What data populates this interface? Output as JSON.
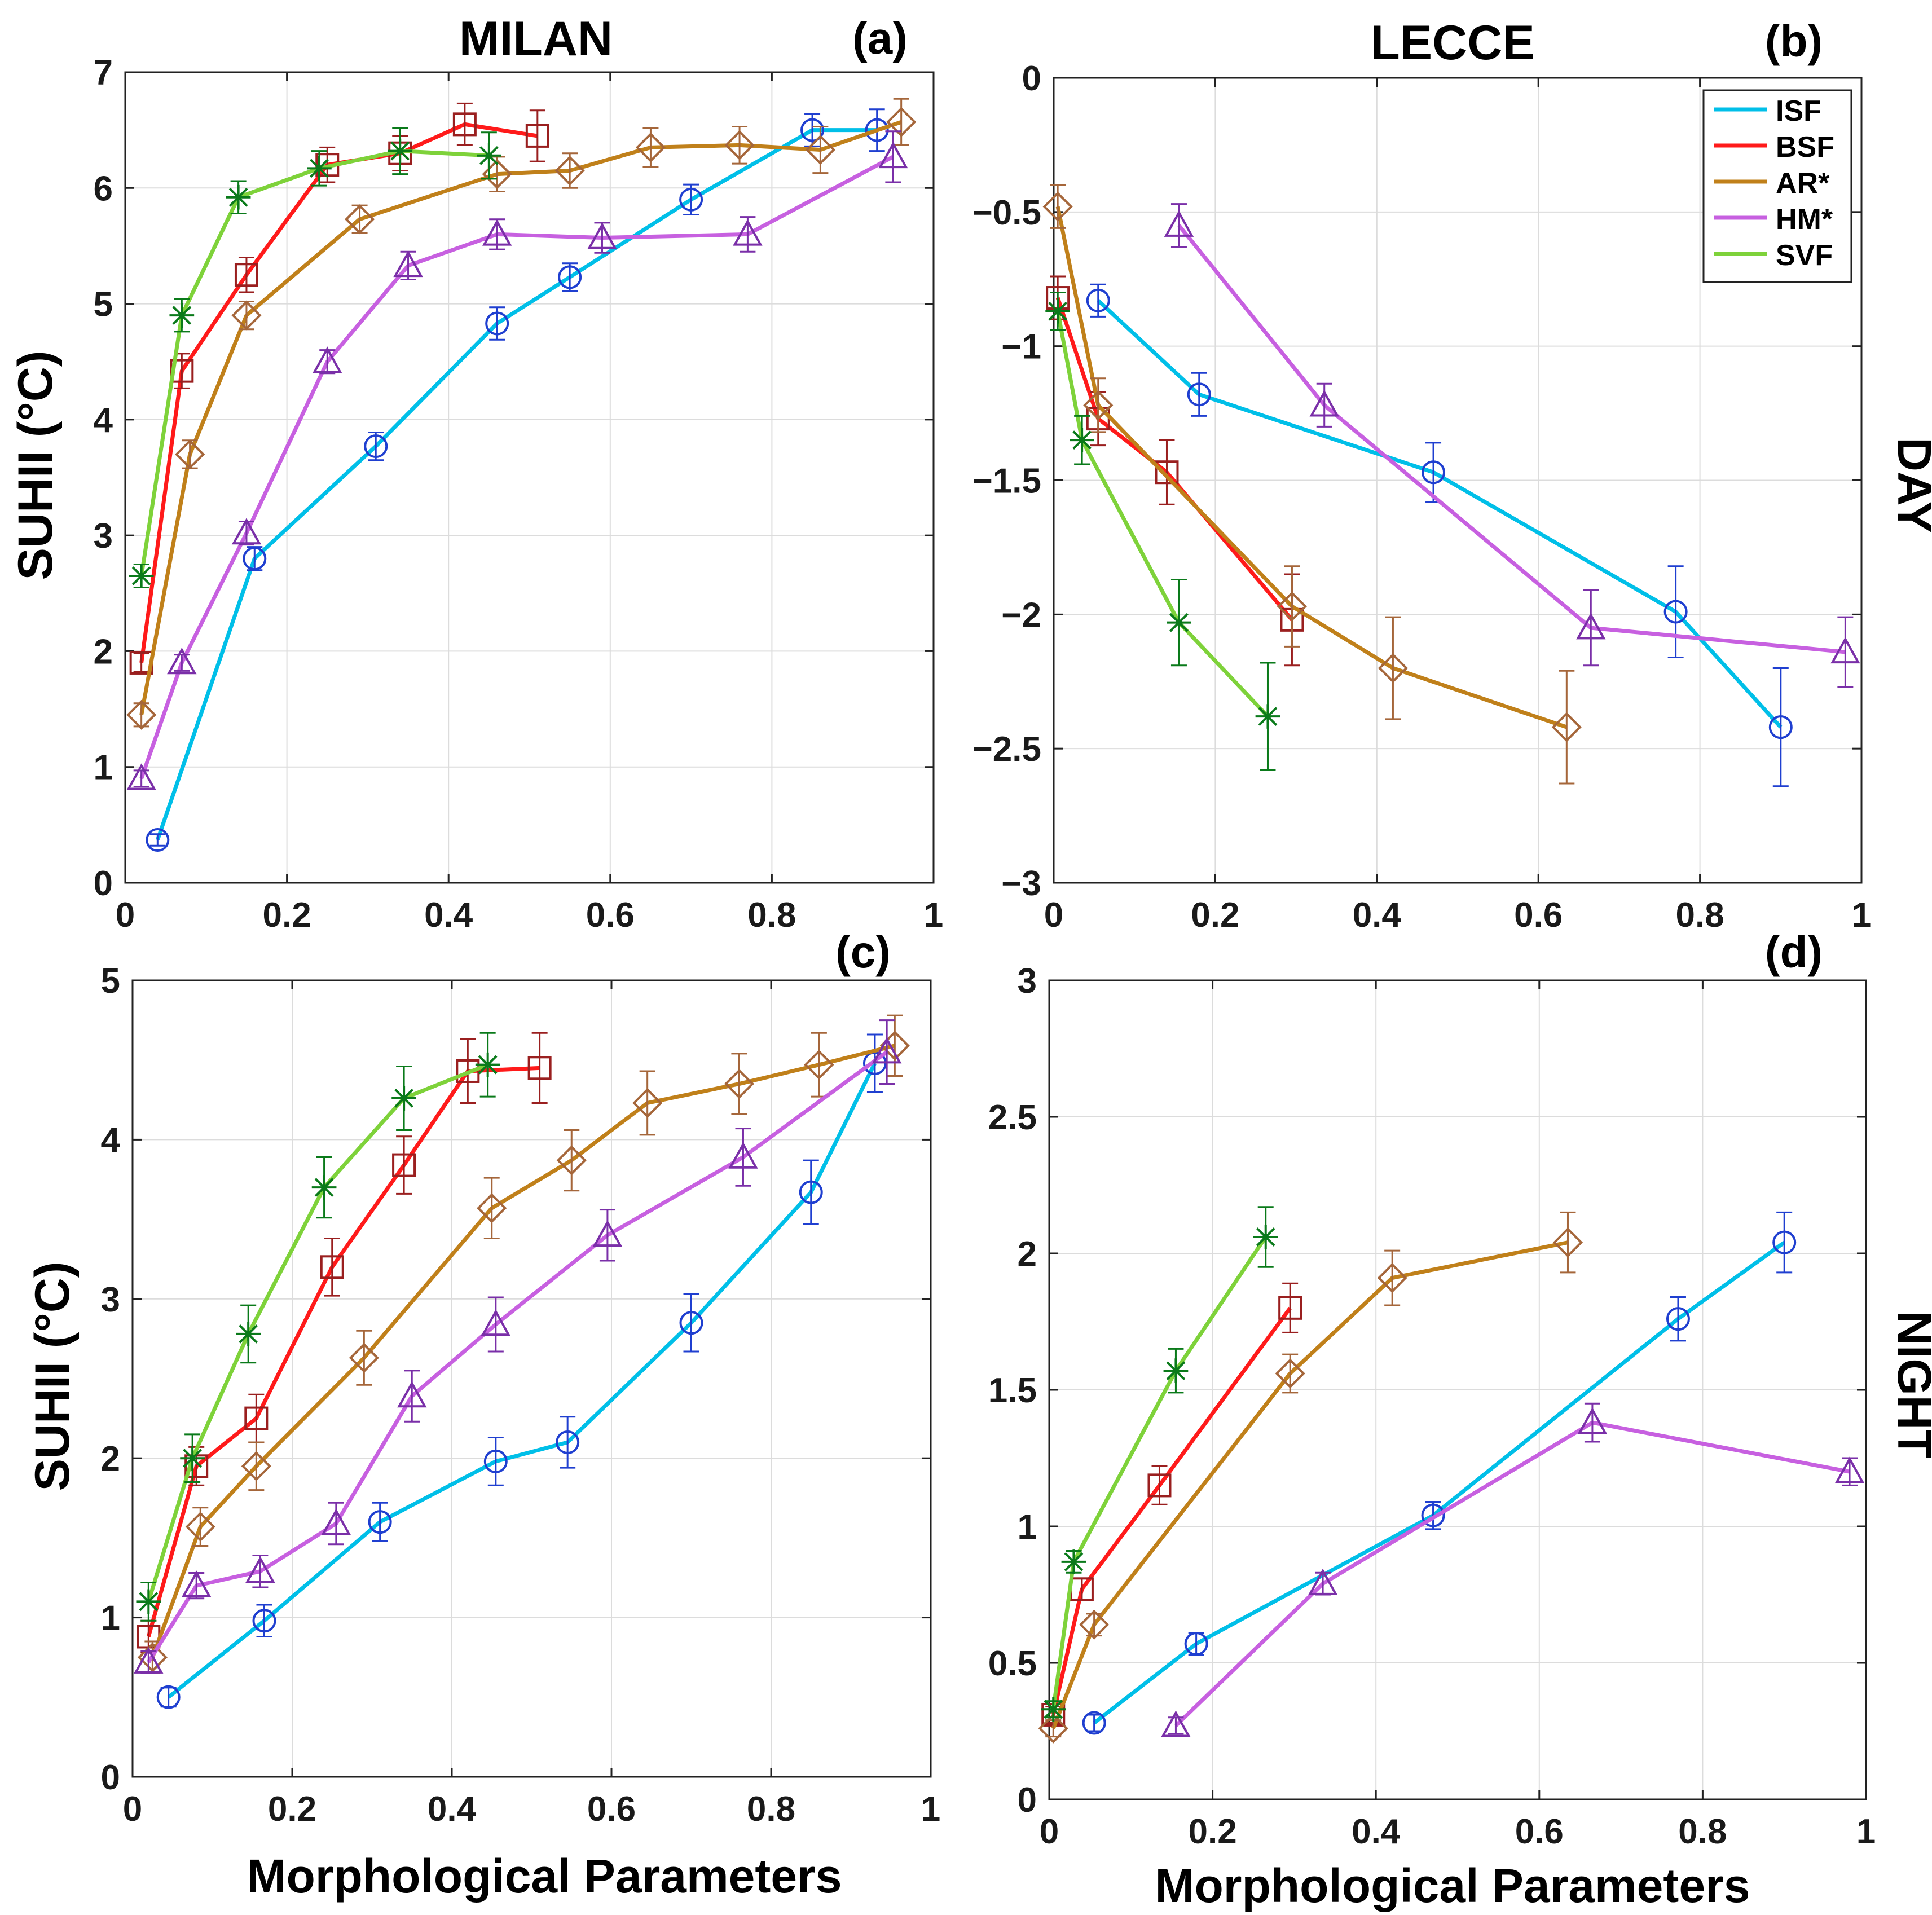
{
  "colors": {
    "ISF": "#00bfe8",
    "BSF": "#ff1a1a",
    "AR*": "#c0801a",
    "HM*": "#c760e0",
    "SVF": "#7ed23a",
    "ISF_marker": "#1f3fd0",
    "BSF_marker": "#9a1f1f",
    "AR*_marker": "#a5663a",
    "HM*_marker": "#7a2fa8",
    "SVF_marker": "#0a7a1a"
  },
  "labels": {
    "city_left": "MILAN",
    "city_right": "LECCE",
    "side_top": "DAY",
    "side_bottom": "NIGHT",
    "ylabel": "SUHII (°C)",
    "xlabel": "Morphological Parameters"
  },
  "chart_data": [
    {
      "id": "a",
      "panel_label": "(a)",
      "type": "line",
      "city": "MILAN",
      "time": "DAY",
      "xlim": [
        0,
        1
      ],
      "ylim": [
        0,
        7
      ],
      "xticks": [
        0,
        0.2,
        0.4,
        0.6,
        0.8,
        1
      ],
      "xtick_labels": [
        "0",
        "0.2",
        "0.4",
        "0.6",
        "0.8",
        "1"
      ],
      "yticks": [
        0,
        1,
        2,
        3,
        4,
        5,
        6,
        7
      ],
      "ytick_labels": [
        "0",
        "1",
        "2",
        "3",
        "4",
        "5",
        "6",
        "7"
      ],
      "grid": true,
      "series": [
        {
          "name": "ISF",
          "marker": "circle",
          "x": [
            0.04,
            0.16,
            0.31,
            0.46,
            0.55,
            0.7,
            0.85,
            0.93
          ],
          "y": [
            0.37,
            2.8,
            3.77,
            4.83,
            5.23,
            5.9,
            6.5,
            6.5
          ],
          "err": [
            0.05,
            0.1,
            0.12,
            0.14,
            0.12,
            0.13,
            0.14,
            0.18
          ]
        },
        {
          "name": "BSF",
          "marker": "square",
          "x": [
            0.02,
            0.07,
            0.15,
            0.25,
            0.34,
            0.42,
            0.51
          ],
          "y": [
            1.9,
            4.42,
            5.25,
            6.2,
            6.3,
            6.55,
            6.45
          ],
          "err": [
            0.08,
            0.15,
            0.15,
            0.15,
            0.15,
            0.18,
            0.22
          ]
        },
        {
          "name": "AR*",
          "marker": "diamond",
          "x": [
            0.02,
            0.08,
            0.15,
            0.29,
            0.46,
            0.55,
            0.65,
            0.76,
            0.86,
            0.96
          ],
          "y": [
            1.45,
            3.7,
            4.9,
            5.73,
            6.12,
            6.15,
            6.35,
            6.37,
            6.33,
            6.57
          ],
          "err": [
            0.1,
            0.12,
            0.12,
            0.12,
            0.15,
            0.15,
            0.17,
            0.16,
            0.2,
            0.2
          ]
        },
        {
          "name": "HM*",
          "marker": "triangle",
          "x": [
            0.02,
            0.07,
            0.15,
            0.25,
            0.35,
            0.46,
            0.59,
            0.77,
            0.95
          ],
          "y": [
            0.9,
            1.9,
            3.02,
            4.5,
            5.33,
            5.6,
            5.57,
            5.6,
            6.27
          ],
          "err": [
            0.07,
            0.07,
            0.1,
            0.1,
            0.12,
            0.13,
            0.13,
            0.15,
            0.22
          ]
        },
        {
          "name": "SVF",
          "marker": "star",
          "x": [
            0.02,
            0.07,
            0.14,
            0.24,
            0.34,
            0.45
          ],
          "y": [
            2.65,
            4.9,
            5.92,
            6.17,
            6.32,
            6.28
          ],
          "err": [
            0.1,
            0.14,
            0.14,
            0.15,
            0.2,
            0.2
          ]
        }
      ]
    },
    {
      "id": "b",
      "panel_label": "(b)",
      "type": "line",
      "city": "LECCE",
      "time": "DAY",
      "xlim": [
        0,
        1
      ],
      "ylim": [
        -3,
        0
      ],
      "xticks": [
        0,
        0.2,
        0.4,
        0.6,
        0.8,
        1
      ],
      "xtick_labels": [
        "0",
        "0.2",
        "0.4",
        "0.6",
        "0.8",
        "1"
      ],
      "yticks": [
        -3,
        -2.5,
        -2,
        -1.5,
        -1,
        -0.5,
        0
      ],
      "ytick_labels": [
        "−3",
        "−2.5",
        "−2",
        "−1.5",
        "−1",
        "−0.5",
        "0"
      ],
      "grid": true,
      "legend": {
        "entries": [
          "ISF",
          "BSF",
          "AR*",
          "HM*",
          "SVF"
        ],
        "location": "top-right"
      },
      "series": [
        {
          "name": "ISF",
          "marker": "circle",
          "x": [
            0.055,
            0.18,
            0.47,
            0.77,
            0.9
          ],
          "y": [
            -0.83,
            -1.18,
            -1.47,
            -1.99,
            -2.42
          ],
          "err": [
            0.06,
            0.08,
            0.11,
            0.17,
            0.22
          ]
        },
        {
          "name": "BSF",
          "marker": "square",
          "x": [
            0.005,
            0.055,
            0.14,
            0.295
          ],
          "y": [
            -0.82,
            -1.27,
            -1.47,
            -2.02
          ],
          "err": [
            0.08,
            0.1,
            0.12,
            0.17
          ]
        },
        {
          "name": "AR*",
          "marker": "diamond",
          "x": [
            0.005,
            0.055,
            0.295,
            0.42,
            0.635
          ],
          "y": [
            -0.48,
            -1.22,
            -1.97,
            -2.2,
            -2.42
          ],
          "err": [
            0.08,
            0.1,
            0.15,
            0.19,
            0.21
          ]
        },
        {
          "name": "HM*",
          "marker": "triangle",
          "x": [
            0.155,
            0.335,
            0.665,
            0.98
          ],
          "y": [
            -0.55,
            -1.22,
            -2.05,
            -2.14
          ],
          "err": [
            0.08,
            0.08,
            0.14,
            0.13
          ]
        },
        {
          "name": "SVF",
          "marker": "star",
          "x": [
            0.005,
            0.035,
            0.155,
            0.265
          ],
          "y": [
            -0.87,
            -1.35,
            -2.03,
            -2.38
          ],
          "err": [
            0.07,
            0.09,
            0.16,
            0.2
          ]
        }
      ]
    },
    {
      "id": "c",
      "panel_label": "(c)",
      "type": "line",
      "city": "MILAN",
      "time": "NIGHT",
      "xlim": [
        0,
        1
      ],
      "ylim": [
        0,
        5
      ],
      "xticks": [
        0,
        0.2,
        0.4,
        0.6,
        0.8,
        1
      ],
      "xtick_labels": [
        "0",
        "0.2",
        "0.4",
        "0.6",
        "0.8",
        "1"
      ],
      "yticks": [
        0,
        1,
        2,
        3,
        4,
        5
      ],
      "ytick_labels": [
        "0",
        "1",
        "2",
        "3",
        "4",
        "5"
      ],
      "grid": true,
      "series": [
        {
          "name": "ISF",
          "marker": "circle",
          "x": [
            0.045,
            0.165,
            0.31,
            0.455,
            0.545,
            0.7,
            0.85,
            0.93
          ],
          "y": [
            0.5,
            0.98,
            1.6,
            1.98,
            2.1,
            2.85,
            3.67,
            4.48
          ],
          "err": [
            0.06,
            0.1,
            0.12,
            0.15,
            0.16,
            0.18,
            0.2,
            0.18
          ]
        },
        {
          "name": "BSF",
          "marker": "square",
          "x": [
            0.02,
            0.08,
            0.155,
            0.25,
            0.34,
            0.42,
            0.51
          ],
          "y": [
            0.88,
            1.95,
            2.25,
            3.2,
            3.84,
            4.43,
            4.45
          ],
          "err": [
            0.1,
            0.12,
            0.15,
            0.18,
            0.18,
            0.2,
            0.22
          ]
        },
        {
          "name": "AR*",
          "marker": "diamond",
          "x": [
            0.025,
            0.085,
            0.155,
            0.29,
            0.45,
            0.55,
            0.645,
            0.76,
            0.86,
            0.955
          ],
          "y": [
            0.75,
            1.57,
            1.95,
            2.63,
            3.57,
            3.87,
            4.23,
            4.35,
            4.47,
            4.59
          ],
          "err": [
            0.1,
            0.12,
            0.15,
            0.17,
            0.19,
            0.19,
            0.2,
            0.19,
            0.2,
            0.19
          ]
        },
        {
          "name": "HM*",
          "marker": "triangle",
          "x": [
            0.02,
            0.08,
            0.16,
            0.255,
            0.35,
            0.455,
            0.595,
            0.765,
            0.945
          ],
          "y": [
            0.72,
            1.2,
            1.29,
            1.59,
            2.39,
            2.84,
            3.4,
            3.89,
            4.55
          ],
          "err": [
            0.07,
            0.08,
            0.1,
            0.13,
            0.16,
            0.17,
            0.16,
            0.18,
            0.2
          ]
        },
        {
          "name": "SVF",
          "marker": "star",
          "x": [
            0.02,
            0.075,
            0.145,
            0.24,
            0.34,
            0.445
          ],
          "y": [
            1.1,
            2.0,
            2.78,
            3.7,
            4.26,
            4.47
          ],
          "err": [
            0.12,
            0.15,
            0.18,
            0.19,
            0.2,
            0.2
          ]
        }
      ]
    },
    {
      "id": "d",
      "panel_label": "(d)",
      "type": "line",
      "city": "LECCE",
      "time": "NIGHT",
      "xlim": [
        0,
        1
      ],
      "ylim": [
        0,
        3
      ],
      "xticks": [
        0,
        0.2,
        0.4,
        0.6,
        0.8,
        1
      ],
      "xtick_labels": [
        "0",
        "0.2",
        "0.4",
        "0.6",
        "0.8",
        "1"
      ],
      "yticks": [
        0,
        0.5,
        1,
        1.5,
        2,
        2.5,
        3
      ],
      "ytick_labels": [
        "0",
        "0.5",
        "1",
        "1.5",
        "2",
        "2.5",
        "3"
      ],
      "grid": true,
      "series": [
        {
          "name": "ISF",
          "marker": "circle",
          "x": [
            0.055,
            0.18,
            0.47,
            0.77,
            0.9
          ],
          "y": [
            0.28,
            0.57,
            1.04,
            1.76,
            2.04
          ],
          "err": [
            0.03,
            0.04,
            0.05,
            0.08,
            0.11
          ]
        },
        {
          "name": "BSF",
          "marker": "square",
          "x": [
            0.005,
            0.04,
            0.135,
            0.295
          ],
          "y": [
            0.31,
            0.77,
            1.15,
            1.8
          ],
          "err": [
            0.03,
            0.04,
            0.07,
            0.09
          ]
        },
        {
          "name": "AR*",
          "marker": "diamond",
          "x": [
            0.005,
            0.055,
            0.295,
            0.42,
            0.635
          ],
          "y": [
            0.26,
            0.64,
            1.56,
            1.91,
            2.04
          ],
          "err": [
            0.03,
            0.04,
            0.07,
            0.1,
            0.11
          ]
        },
        {
          "name": "HM*",
          "marker": "triangle",
          "x": [
            0.155,
            0.335,
            0.665,
            0.98
          ],
          "y": [
            0.27,
            0.79,
            1.38,
            1.2
          ],
          "err": [
            0.03,
            0.04,
            0.07,
            0.05
          ]
        },
        {
          "name": "SVF",
          "marker": "star",
          "x": [
            0.005,
            0.03,
            0.155,
            0.265
          ],
          "y": [
            0.33,
            0.87,
            1.57,
            2.06
          ],
          "err": [
            0.03,
            0.04,
            0.08,
            0.11
          ]
        }
      ]
    }
  ]
}
